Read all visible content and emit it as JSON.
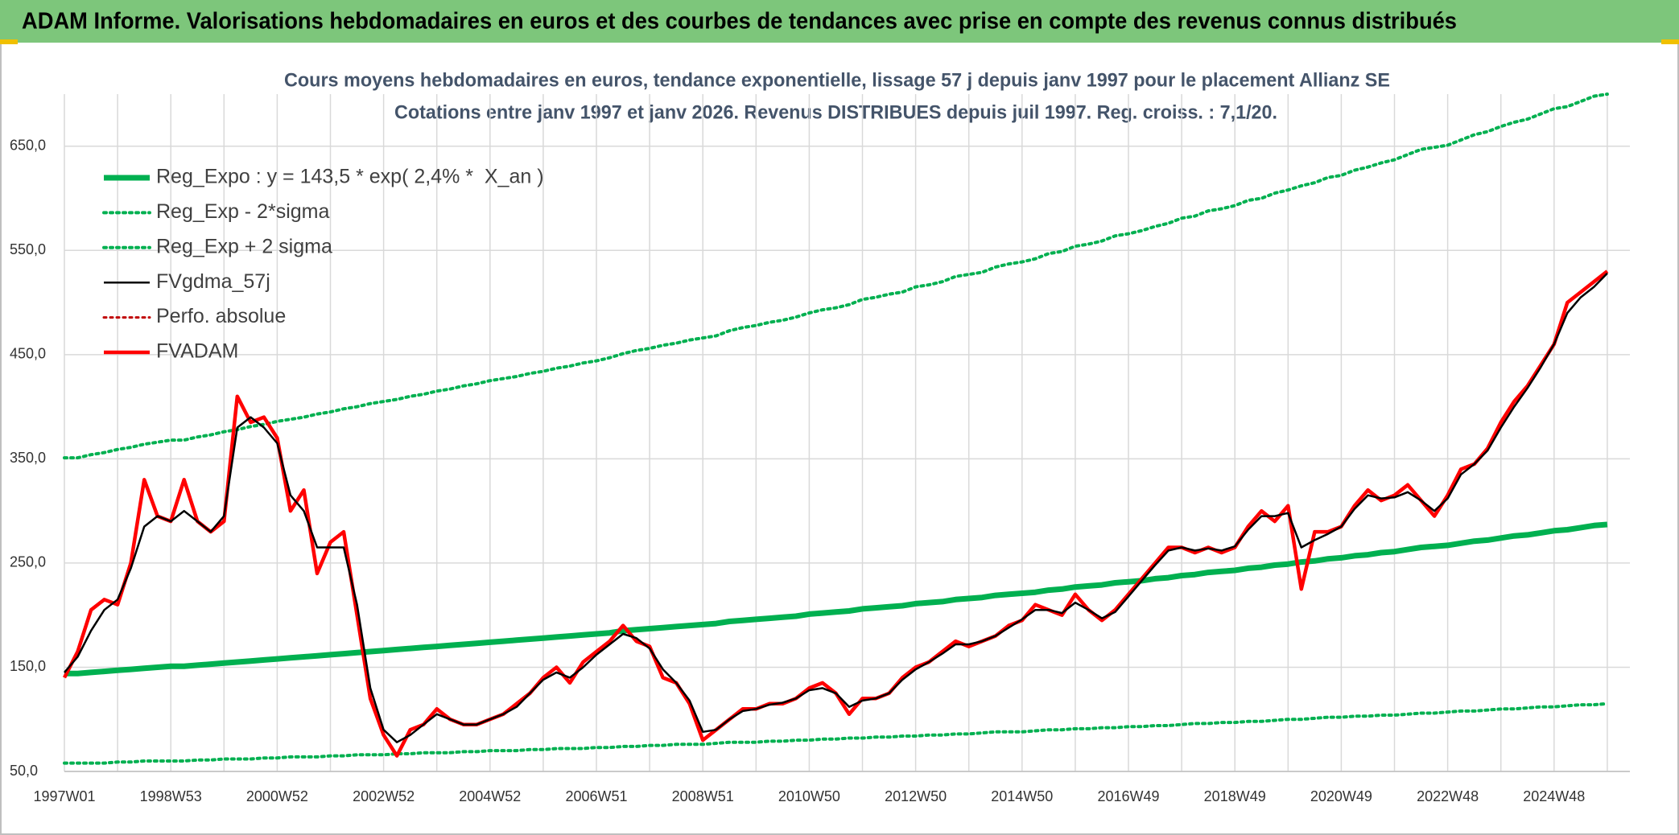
{
  "chart_data": {
    "type": "line",
    "title": "ADAM Informe. Valorisations hebdomadaires en euros et des courbes de tendances avec prise en compte des revenus connus distribués",
    "subtitle": [
      "Cours moyens hebdomadaires en euros, tendance exponentielle, lissage 57 j depuis janv 1997 pour le placement Allianz SE",
      "Cotations entre janv 1997 et janv 2026. Revenus DISTRIBUES depuis juil 1997. Reg. croiss. : 7,1/20."
    ],
    "categories": [
      "1997W01",
      null,
      null,
      null,
      null,
      null,
      null,
      null,
      "1998W53",
      null,
      null,
      null,
      null,
      null,
      null,
      null,
      "2000W52",
      null,
      null,
      null,
      null,
      null,
      null,
      null,
      "2002W52",
      null,
      null,
      null,
      null,
      null,
      null,
      null,
      "2004W52",
      null,
      null,
      null,
      null,
      null,
      null,
      null,
      "2006W51",
      null,
      null,
      null,
      null,
      null,
      null,
      null,
      "2008W51",
      null,
      null,
      null,
      null,
      null,
      null,
      null,
      "2010W50",
      null,
      null,
      null,
      null,
      null,
      null,
      null,
      "2012W50",
      null,
      null,
      null,
      null,
      null,
      null,
      null,
      "2014W50",
      null,
      null,
      null,
      null,
      null,
      null,
      null,
      "2016W49",
      null,
      null,
      null,
      null,
      null,
      null,
      null,
      "2018W49",
      null,
      null,
      null,
      null,
      null,
      null,
      null,
      "2020W49",
      null,
      null,
      null,
      null,
      null,
      null,
      null,
      "2022W48",
      null,
      null,
      null,
      null,
      null,
      null,
      null,
      "2024W48",
      null,
      null,
      null,
      null
    ],
    "ylim": [
      50,
      700
    ],
    "yticks": [
      {
        "value": 50,
        "label": "50,0"
      },
      {
        "value": 150,
        "label": "150,0"
      },
      {
        "value": 250,
        "label": "250,0"
      },
      {
        "value": 350,
        "label": "350,0"
      },
      {
        "value": 450,
        "label": "450,0"
      },
      {
        "value": 550,
        "label": "550,0"
      },
      {
        "value": 650,
        "label": "650,0"
      }
    ],
    "grid": true,
    "legend": "upper left",
    "series": [
      {
        "name": "Reg_Expo : y = 143,5 * exp( 2,4% *  X_an )",
        "color": "#00b050",
        "line_style": "solid",
        "values": [
          144,
          144,
          145,
          146,
          147,
          148,
          149,
          150,
          151,
          151,
          152,
          153,
          154,
          155,
          156,
          157,
          158,
          159,
          160,
          161,
          162,
          163,
          164,
          165,
          166,
          167,
          168,
          169,
          170,
          171,
          172,
          173,
          174,
          175,
          176,
          177,
          178,
          179,
          180,
          181,
          182,
          183,
          185,
          186,
          187,
          188,
          189,
          190,
          191,
          192,
          194,
          195,
          196,
          197,
          198,
          199,
          201,
          202,
          203,
          204,
          206,
          207,
          208,
          209,
          211,
          212,
          213,
          215,
          216,
          217,
          219,
          220,
          221,
          222,
          224,
          225,
          227,
          228,
          229,
          231,
          232,
          233,
          235,
          236,
          238,
          239,
          241,
          242,
          243,
          245,
          246,
          248,
          249,
          251,
          252,
          254,
          255,
          257,
          258,
          260,
          261,
          263,
          265,
          266,
          267,
          269,
          271,
          272,
          274,
          276,
          277,
          279,
          281,
          282,
          284,
          286,
          287
        ]
      },
      {
        "name": "Reg_Exp - 2*sigma",
        "color": "#00b050",
        "line_style": "dotted",
        "values": [
          58,
          58,
          58,
          58,
          59,
          59,
          60,
          60,
          60,
          60,
          61,
          61,
          62,
          62,
          62,
          63,
          63,
          64,
          64,
          64,
          65,
          65,
          66,
          66,
          66,
          67,
          67,
          68,
          68,
          68,
          69,
          69,
          70,
          70,
          70,
          71,
          71,
          72,
          72,
          72,
          73,
          73,
          74,
          74,
          75,
          75,
          76,
          76,
          76,
          77,
          78,
          78,
          78,
          79,
          79,
          80,
          80,
          81,
          81,
          82,
          82,
          83,
          83,
          84,
          84,
          85,
          85,
          86,
          86,
          87,
          88,
          88,
          88,
          89,
          90,
          90,
          91,
          91,
          92,
          92,
          93,
          93,
          94,
          94,
          95,
          96,
          96,
          97,
          97,
          98,
          98,
          99,
          100,
          100,
          101,
          102,
          102,
          103,
          103,
          104,
          104,
          105,
          106,
          106,
          107,
          108,
          108,
          109,
          110,
          110,
          111,
          112,
          112,
          113,
          114,
          114,
          115
        ]
      },
      {
        "name": "Reg_Exp + 2 sigma",
        "color": "#00b050",
        "line_style": "dotted",
        "values": [
          351,
          351,
          354,
          356,
          359,
          361,
          364,
          366,
          368,
          368,
          371,
          373,
          376,
          378,
          381,
          383,
          386,
          388,
          390,
          393,
          395,
          398,
          400,
          403,
          405,
          407,
          410,
          412,
          415,
          417,
          420,
          422,
          425,
          427,
          429,
          432,
          434,
          437,
          439,
          442,
          444,
          447,
          451,
          454,
          456,
          459,
          461,
          464,
          466,
          468,
          473,
          476,
          478,
          481,
          483,
          486,
          490,
          493,
          495,
          498,
          503,
          505,
          508,
          510,
          515,
          517,
          520,
          525,
          527,
          529,
          534,
          537,
          539,
          542,
          547,
          549,
          554,
          556,
          559,
          564,
          566,
          569,
          573,
          576,
          581,
          583,
          588,
          590,
          593,
          598,
          600,
          605,
          608,
          612,
          615,
          620,
          622,
          627,
          630,
          634,
          637,
          642,
          647,
          649,
          651,
          656,
          661,
          664,
          669,
          673,
          676,
          681,
          686,
          688,
          693,
          698,
          700
        ]
      },
      {
        "name": "FVgdma_57j",
        "color": "#000000",
        "line_style": "solid",
        "values": [
          145,
          160,
          185,
          205,
          215,
          245,
          285,
          295,
          290,
          300,
          290,
          280,
          295,
          380,
          390,
          380,
          365,
          315,
          300,
          265,
          265,
          265,
          210,
          130,
          90,
          78,
          85,
          95,
          105,
          100,
          95,
          95,
          100,
          105,
          112,
          125,
          138,
          145,
          140,
          150,
          162,
          172,
          182,
          178,
          168,
          148,
          135,
          118,
          88,
          90,
          100,
          108,
          110,
          114,
          116,
          120,
          128,
          130,
          125,
          112,
          118,
          120,
          125,
          138,
          148,
          155,
          163,
          172,
          172,
          175,
          180,
          188,
          196,
          205,
          205,
          202,
          212,
          205,
          197,
          203,
          218,
          233,
          248,
          262,
          265,
          262,
          264,
          262,
          266,
          282,
          295,
          295,
          298,
          265,
          272,
          278,
          285,
          302,
          315,
          312,
          313,
          318,
          310,
          300,
          312,
          335,
          345,
          358,
          380,
          400,
          418,
          438,
          460,
          490,
          505,
          515,
          528
        ]
      },
      {
        "name": "Perfo. absolue",
        "color": "#c00000",
        "line_style": "dotted",
        "values": [
          null,
          null,
          null,
          null,
          null,
          null,
          null,
          null,
          null,
          null,
          null,
          null,
          null,
          null,
          null,
          null,
          null,
          null,
          null,
          null,
          null,
          null,
          null,
          null,
          null,
          null,
          null,
          null,
          null,
          null,
          null,
          null,
          null,
          null,
          null,
          null,
          null,
          null,
          null,
          null,
          null,
          null,
          null,
          null,
          null,
          null,
          null,
          null,
          null,
          null,
          null,
          null,
          null,
          null,
          null,
          null,
          null,
          null,
          null,
          null,
          null,
          null,
          null,
          null,
          null,
          null,
          null,
          null,
          null,
          null,
          null,
          null,
          null,
          null,
          null,
          null,
          null,
          null,
          null,
          null,
          null,
          null,
          null,
          null,
          null,
          null,
          null,
          null,
          null,
          null,
          null,
          null,
          null,
          null,
          null,
          null,
          null,
          null,
          null,
          null,
          null,
          null,
          null,
          null,
          null,
          null,
          null,
          null,
          null,
          null,
          null,
          null,
          null,
          null,
          null,
          null,
          null
        ]
      },
      {
        "name": "FVADAM",
        "color": "#ff0000",
        "line_style": "solid",
        "values": [
          140,
          165,
          205,
          215,
          210,
          250,
          330,
          295,
          290,
          330,
          290,
          280,
          290,
          410,
          385,
          390,
          370,
          300,
          320,
          240,
          270,
          280,
          200,
          120,
          85,
          65,
          90,
          95,
          110,
          100,
          95,
          95,
          100,
          105,
          115,
          125,
          140,
          150,
          135,
          155,
          165,
          175,
          190,
          175,
          170,
          140,
          135,
          115,
          80,
          90,
          100,
          110,
          110,
          115,
          115,
          120,
          130,
          135,
          125,
          105,
          120,
          120,
          125,
          140,
          150,
          155,
          165,
          175,
          170,
          175,
          180,
          190,
          195,
          210,
          205,
          200,
          220,
          205,
          195,
          205,
          220,
          235,
          250,
          265,
          265,
          260,
          265,
          260,
          265,
          285,
          300,
          290,
          305,
          225,
          280,
          280,
          285,
          305,
          320,
          310,
          315,
          325,
          310,
          295,
          315,
          340,
          345,
          360,
          385,
          405,
          420,
          440,
          460,
          500,
          510,
          520,
          530
        ]
      }
    ]
  }
}
